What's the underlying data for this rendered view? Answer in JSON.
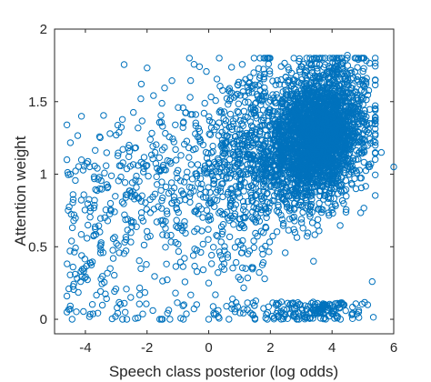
{
  "chart_data": {
    "type": "scatter",
    "title": "",
    "xlabel": "Speech class posterior (log odds)",
    "ylabel": "Attention weight",
    "xlim": [
      -5,
      6
    ],
    "ylim": [
      -0.1,
      2
    ],
    "xticks": [
      "-4",
      "-2",
      "0",
      "2",
      "4",
      "6"
    ],
    "yticks": [
      "0",
      "0.5",
      "1",
      "1.5",
      "2"
    ],
    "grid": false,
    "marker": "open-circle",
    "color": "#0072BD",
    "approx_point_count": 4000,
    "points": [
      [
        -4.6,
        1.34
      ],
      [
        -4.5,
        0.07
      ],
      [
        -4.6,
        0.05
      ],
      [
        -3.5,
        0.48
      ],
      [
        -3.2,
        1.28
      ],
      [
        -3.0,
        1.27
      ],
      [
        -2.3,
        0.01
      ],
      [
        -2.2,
        1.52
      ],
      [
        -1.5,
        0.0
      ],
      [
        -1.2,
        0.8
      ],
      [
        -0.9,
        1.13
      ],
      [
        -0.5,
        0.44
      ],
      [
        0.5,
        1.43
      ],
      [
        1.2,
        0.35
      ],
      [
        1.5,
        0.0
      ],
      [
        2.2,
        1.55
      ],
      [
        2.5,
        1.67
      ],
      [
        2.6,
        1.72
      ],
      [
        3.0,
        1.55
      ],
      [
        3.4,
        0.4
      ],
      [
        3.5,
        1.76
      ],
      [
        3.8,
        1.68
      ],
      [
        4.1,
        1.74
      ],
      [
        4.2,
        1.78
      ],
      [
        4.5,
        1.82
      ],
      [
        4.9,
        1.62
      ],
      [
        5.0,
        1.65
      ],
      [
        5.0,
        1.52
      ],
      [
        5.3,
        1.35
      ],
      [
        5.3,
        0.26
      ],
      [
        5.6,
        1.15
      ],
      [
        6.0,
        1.05
      ],
      [
        0.0,
        0.25
      ],
      [
        0.0,
        0.0
      ],
      [
        -4.4,
        0.86
      ],
      [
        -4.4,
        0.36
      ],
      [
        -4.6,
        0.16
      ],
      [
        -4.6,
        1.1
      ],
      [
        1.9,
        0.0
      ],
      [
        2.2,
        0.11
      ]
    ]
  }
}
